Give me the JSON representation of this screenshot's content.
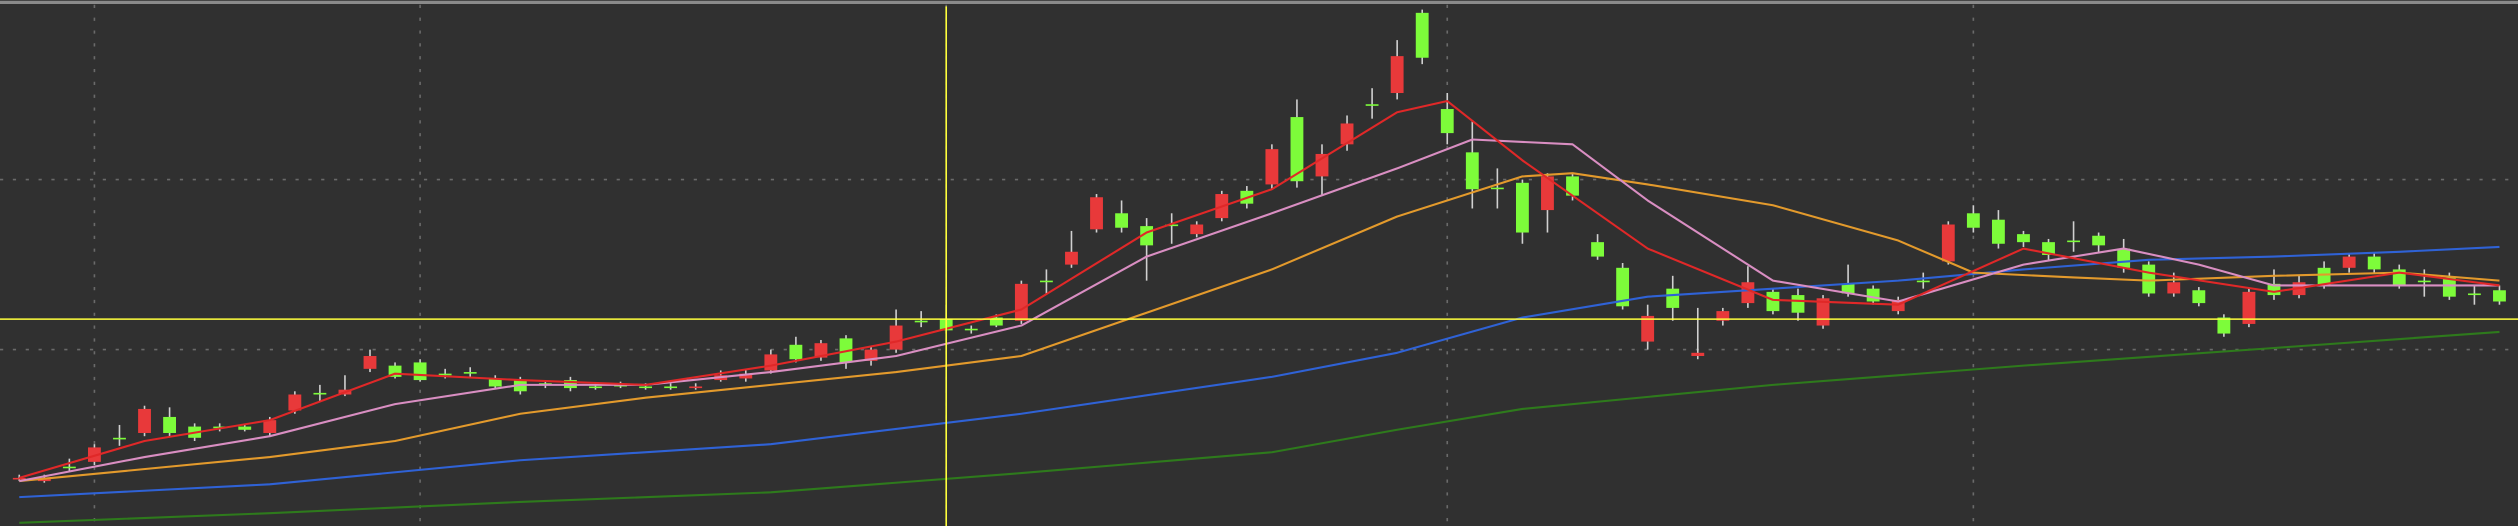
{
  "chart_data": {
    "type": "candlestick",
    "background": "#303030",
    "up_color": "#7dfc3a",
    "down_color": "#e8393a",
    "wick_color": "#d0d0d0",
    "grid": true,
    "grid_color": "#6a6a6a",
    "xlim": [
      -0.769,
      99.74
    ],
    "ylim": [
      2,
      330
    ],
    "xticks": [
      3,
      16,
      37,
      57,
      78
    ],
    "yticks": [
      112,
      218
    ],
    "open": [
      32,
      32,
      38,
      51,
      56,
      75,
      60,
      57,
      63,
      62,
      68,
      84,
      84,
      87,
      108,
      95,
      93,
      97,
      97,
      89,
      86,
      90,
      88,
      89,
      89,
      88,
      89,
      89,
      96,
      97,
      109,
      106,
      116,
      104,
      112,
      127,
      130,
      124,
      125,
      127,
      153,
      155,
      173,
      207,
      188,
      177,
      190,
      190,
      209,
      203,
      237,
      217,
      234,
      253,
      265,
      295,
      294,
      247,
      212,
      212,
      185,
      220,
      208,
      170,
      139,
      133,
      138,
      110,
      136,
      154,
      136,
      135,
      144,
      147,
      142,
      143,
      155,
      190,
      188,
      178,
      179,
      171,
      180,
      177,
      163,
      147,
      154,
      141,
      122,
      148,
      146,
      154,
      152,
      170,
      162,
      152,
      155,
      145,
      147,
      142
    ],
    "high": [
      34,
      34,
      44,
      53,
      65,
      77,
      76,
      66,
      66,
      65,
      70,
      86,
      90,
      96,
      112,
      104,
      106,
      100,
      101,
      96,
      95,
      93,
      95,
      91,
      92,
      91,
      91,
      91,
      99,
      99,
      112,
      120,
      118,
      121,
      114,
      137,
      136,
      140,
      127,
      134,
      155,
      162,
      186,
      209,
      205,
      194,
      197,
      192,
      211,
      214,
      240,
      268,
      240,
      258,
      275,
      305,
      324,
      272,
      255,
      225,
      218,
      222,
      222,
      184,
      166,
      140,
      158,
      138,
      138,
      164,
      150,
      150,
      146,
      165,
      152,
      145,
      160,
      192,
      202,
      199,
      186,
      181,
      192,
      185,
      181,
      167,
      160,
      151,
      134,
      150,
      162,
      158,
      167,
      172,
      172,
      165,
      162,
      160,
      152,
      152
    ],
    "low": [
      30,
      29,
      36,
      40,
      52,
      58,
      58,
      55,
      61,
      61,
      58,
      72,
      80,
      83,
      98,
      94,
      92,
      94,
      95,
      88,
      84,
      88,
      86,
      87,
      88,
      87,
      87,
      87,
      92,
      92,
      97,
      104,
      105,
      100,
      102,
      110,
      126,
      122,
      122,
      126,
      128,
      147,
      163,
      185,
      185,
      155,
      178,
      182,
      192,
      200,
      212,
      213,
      208,
      236,
      256,
      268,
      290,
      240,
      200,
      200,
      178,
      185,
      205,
      168,
      137,
      112,
      130,
      106,
      127,
      138,
      134,
      130,
      125,
      145,
      140,
      134,
      150,
      165,
      185,
      175,
      176,
      168,
      173,
      173,
      160,
      145,
      145,
      139,
      120,
      126,
      143,
      144,
      150,
      160,
      160,
      150,
      145,
      143,
      140,
      140
    ],
    "close": [
      31,
      30,
      39,
      42,
      57,
      60,
      70,
      64,
      64,
      64,
      60,
      74,
      85,
      84,
      100,
      102,
      104,
      97,
      98,
      94,
      93,
      91,
      93,
      89,
      90,
      89,
      89,
      88,
      93,
      94,
      99,
      115,
      107,
      119,
      105,
      112,
      130,
      131,
      125,
      132,
      130,
      155,
      165,
      187,
      197,
      189,
      190,
      184,
      194,
      211,
      215,
      257,
      220,
      240,
      265,
      272,
      322,
      262,
      235,
      213,
      216,
      199,
      220,
      179,
      163,
      117,
      150,
      108,
      130,
      141,
      148,
      146,
      127,
      153,
      150,
      136,
      155,
      167,
      197,
      193,
      184,
      179,
      180,
      183,
      175,
      165,
      147,
      149,
      132,
      128,
      153,
      146,
      163,
      163,
      170,
      162,
      155,
      157,
      147,
      149
    ],
    "lines": [
      {
        "color": "#2e7a1c",
        "x": [
          0,
          10,
          20,
          30,
          40,
          50,
          55,
          60,
          70,
          80,
          90,
          99
        ],
        "values": [
          4,
          10,
          17,
          23,
          35,
          48,
          62,
          75,
          90,
          102,
          113,
          123
        ]
      },
      {
        "color": "#2f62d6",
        "x": [
          0,
          10,
          20,
          30,
          40,
          50,
          55,
          60,
          65,
          70,
          75,
          80,
          85,
          90,
          95,
          99
        ],
        "values": [
          20,
          28,
          43,
          53,
          72,
          95,
          110,
          132,
          145,
          150,
          155,
          162,
          168,
          170,
          173,
          176
        ]
      },
      {
        "color": "#e39a2c",
        "x": [
          0,
          10,
          15,
          20,
          25,
          30,
          35,
          40,
          45,
          50,
          55,
          60,
          62,
          65,
          70,
          75,
          78,
          82,
          85,
          90,
          95,
          99
        ],
        "values": [
          30,
          45,
          55,
          72,
          82,
          90,
          98,
          108,
          135,
          162,
          195,
          220,
          222,
          215,
          202,
          180,
          160,
          157,
          155,
          158,
          160,
          155
        ]
      },
      {
        "color": "#d98ec2",
        "x": [
          0,
          5,
          10,
          15,
          20,
          25,
          30,
          35,
          40,
          45,
          50,
          55,
          58,
          62,
          65,
          70,
          75,
          80,
          84,
          87,
          90,
          95,
          99
        ],
        "values": [
          30,
          45,
          58,
          78,
          90,
          90,
          98,
          108,
          127,
          170,
          197,
          225,
          243,
          240,
          205,
          155,
          142,
          165,
          175,
          165,
          152,
          152,
          152
        ]
      },
      {
        "color": "#e02828",
        "x": [
          0,
          5,
          10,
          15,
          20,
          25,
          30,
          35,
          40,
          45,
          50,
          55,
          57,
          60,
          65,
          70,
          75,
          80,
          85,
          90,
          95,
          99
        ],
        "values": [
          32,
          55,
          68,
          97,
          93,
          90,
          102,
          117,
          137,
          185,
          212,
          260,
          267,
          230,
          175,
          143,
          140,
          175,
          160,
          148,
          160,
          152
        ]
      }
    ],
    "crosshair": {
      "color": "#ffff3c",
      "x": 37,
      "y": 131
    }
  }
}
